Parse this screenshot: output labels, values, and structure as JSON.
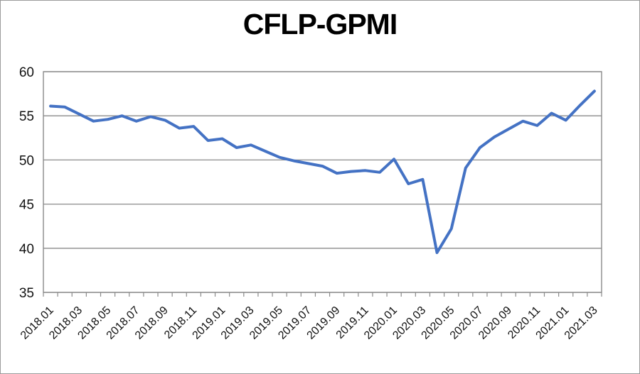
{
  "chart_data": {
    "type": "line",
    "title": "CFLP-GPMI",
    "series_name": "CFLP-GPMI",
    "x": [
      "2018.01",
      "2018.02",
      "2018.03",
      "2018.04",
      "2018.05",
      "2018.06",
      "2018.07",
      "2018.08",
      "2018.09",
      "2018.10",
      "2018.11",
      "2018.12",
      "2019.01",
      "2019.02",
      "2019.03",
      "2019.04",
      "2019.05",
      "2019.06",
      "2019.07",
      "2019.08",
      "2019.09",
      "2019.10",
      "2019.11",
      "2019.12",
      "2020.01",
      "2020.02",
      "2020.03",
      "2020.04",
      "2020.05",
      "2020.06",
      "2020.07",
      "2020.08",
      "2020.09",
      "2020.10",
      "2020.11",
      "2020.12",
      "2021.01",
      "2021.02",
      "2021.03"
    ],
    "values": [
      56.1,
      56.0,
      55.2,
      54.4,
      54.6,
      55.0,
      54.4,
      54.9,
      54.5,
      53.6,
      53.8,
      52.2,
      52.4,
      51.4,
      51.7,
      51.0,
      50.3,
      49.9,
      49.6,
      49.3,
      48.5,
      48.7,
      48.8,
      48.6,
      50.1,
      47.3,
      47.8,
      39.5,
      42.2,
      49.1,
      51.4,
      52.6,
      53.5,
      54.4,
      53.9,
      55.3,
      54.5,
      56.2,
      57.8
    ],
    "x_tick_labels": [
      "2018.01",
      "2018.03",
      "2018.05",
      "2018.07",
      "2018.09",
      "2018.11",
      "2019.01",
      "2019.03",
      "2019.05",
      "2019.07",
      "2019.09",
      "2019.11",
      "2020.01",
      "2020.03",
      "2020.05",
      "2020.07",
      "2020.09",
      "2020.11",
      "2021.01",
      "2021.03"
    ],
    "x_label_interval": 2,
    "ylim": [
      35,
      60
    ],
    "yticks": [
      35,
      40,
      45,
      50,
      55,
      60
    ],
    "grid": "horizontal",
    "legend": "none",
    "line_color": "#4472C4",
    "grid_color": "#8a8a8a",
    "axis_color": "#8a8a8a",
    "label_color": "#111111",
    "title_color": "#000000"
  }
}
